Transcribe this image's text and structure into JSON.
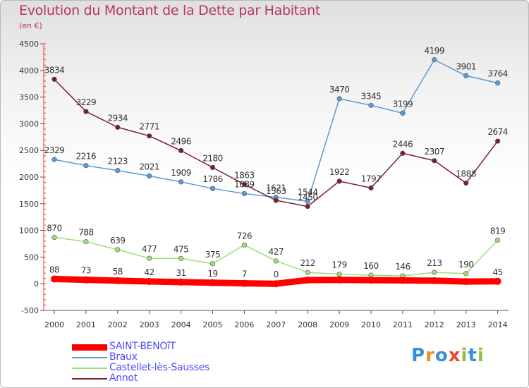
{
  "title": "Evolution du Montant de la Dette par Habitant",
  "subtitle": "(en €)",
  "logo": [
    "P",
    "r",
    "o",
    "x",
    "i",
    "t",
    "i"
  ],
  "chart_data": {
    "type": "line",
    "x": [
      "2000",
      "2001",
      "2002",
      "2003",
      "2004",
      "2005",
      "2006",
      "2007",
      "2008",
      "2009",
      "2010",
      "2011",
      "2012",
      "2013",
      "2014"
    ],
    "ylim": [
      -500,
      4500
    ],
    "yticks": [
      "-500",
      "0",
      "500",
      "1000",
      "1500",
      "2000",
      "2500",
      "3000",
      "3500",
      "4000",
      "4500"
    ],
    "grid": false,
    "legend_position": "bottom-left",
    "series": [
      {
        "name": "SAINT-BENOîT",
        "color": "#ff0000",
        "values": [
          88,
          73,
          58,
          42,
          31,
          19,
          7,
          0,
          69,
          72,
          67,
          62,
          57,
          41,
          45
        ],
        "labels": [
          "88",
          "73",
          "58",
          "42",
          "31",
          "19",
          "7",
          "0",
          "",
          "",
          "",
          "",
          "",
          "",
          "45"
        ]
      },
      {
        "name": "Braux",
        "color": "#5b9bd5",
        "values": [
          2329,
          2216,
          2123,
          2021,
          1909,
          1786,
          1689,
          1621,
          1544,
          3470,
          3345,
          3199,
          4199,
          3901,
          3764
        ],
        "labels": [
          "2329",
          "2216",
          "2123",
          "2021",
          "1909",
          "1786",
          "1689",
          "1621",
          "1544",
          "3470",
          "3345",
          "3199",
          "4199",
          "3901",
          "3764"
        ]
      },
      {
        "name": "Castellet-lès-Sausses",
        "color": "#99e07a",
        "values": [
          870,
          788,
          639,
          477,
          475,
          375,
          726,
          427,
          212,
          179,
          160,
          146,
          213,
          190,
          819
        ],
        "labels": [
          "870",
          "788",
          "639",
          "477",
          "475",
          "375",
          "726",
          "427",
          "212",
          "179",
          "160",
          "146",
          "213",
          "190",
          "819"
        ]
      },
      {
        "name": "Annot",
        "color": "#7a1f2b",
        "values": [
          3834,
          3229,
          2934,
          2771,
          2496,
          2180,
          1863,
          1563,
          1450,
          1922,
          1797,
          2446,
          2307,
          1888,
          2674
        ],
        "labels": [
          "3834",
          "3229",
          "2934",
          "2771",
          "2496",
          "2180",
          "1863",
          "1563",
          "1450",
          "1922",
          "1797",
          "2446",
          "2307",
          "1888",
          "2674"
        ]
      }
    ]
  }
}
